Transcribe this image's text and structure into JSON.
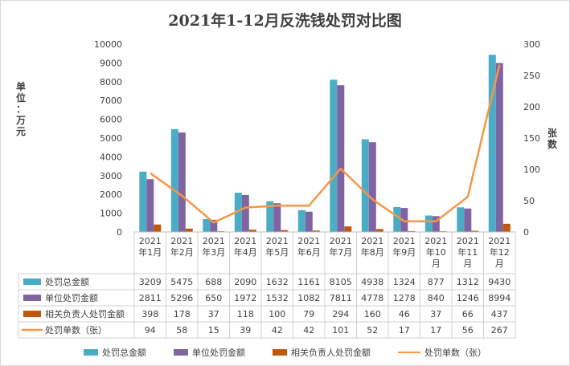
{
  "chart_data": {
    "type": "bar",
    "title": "2021年1-12月反洗钱处罚对比图",
    "ylabel": "单位：万元",
    "y2label": "张数",
    "ylim": [
      0,
      10000
    ],
    "y2lim": [
      0,
      300
    ],
    "yticks": [
      "0",
      "1000",
      "2000",
      "3000",
      "4000",
      "5000",
      "6000",
      "7000",
      "8000",
      "9000",
      "10000"
    ],
    "y2ticks": [
      "0",
      "50",
      "100",
      "150",
      "200",
      "250",
      "300"
    ],
    "categories": [
      "2021年1月",
      "2021年2月",
      "2021年3月",
      "2021年4月",
      "2021年5月",
      "2021年6月",
      "2021年7月",
      "2021年8月",
      "2021年9月",
      "2021年10月",
      "2021年11月",
      "2021年12月"
    ],
    "category_lines": [
      [
        "2021",
        "年1月"
      ],
      [
        "2021",
        "年2月"
      ],
      [
        "2021",
        "年3月"
      ],
      [
        "2021",
        "年4月"
      ],
      [
        "2021",
        "年5月"
      ],
      [
        "2021",
        "年6月"
      ],
      [
        "2021",
        "年7月"
      ],
      [
        "2021",
        "年8月"
      ],
      [
        "2021",
        "年9月"
      ],
      [
        "2021",
        "年10",
        "月"
      ],
      [
        "2021",
        "年11",
        "月"
      ],
      [
        "2021",
        "年12",
        "月"
      ]
    ],
    "series": [
      {
        "name": "处罚总金额",
        "kind": "bar",
        "axis": "left",
        "color": "#4bacc6",
        "values": [
          3209,
          5475,
          688,
          2090,
          1632,
          1161,
          8105,
          4938,
          1324,
          877,
          1312,
          9430
        ]
      },
      {
        "name": "单位处罚金额",
        "kind": "bar",
        "axis": "left",
        "color": "#8064a2",
        "values": [
          2811,
          5296,
          650,
          1972,
          1532,
          1082,
          7811,
          4778,
          1278,
          840,
          1246,
          8994
        ]
      },
      {
        "name": "相关负责人处罚金额",
        "kind": "bar",
        "axis": "left",
        "color": "#c0580c",
        "values": [
          398,
          178,
          37,
          118,
          100,
          79,
          294,
          160,
          46,
          37,
          66,
          437
        ]
      },
      {
        "name": "处罚单数（张）",
        "kind": "line",
        "axis": "right",
        "color": "#f79646",
        "values": [
          94,
          58,
          15,
          39,
          42,
          42,
          101,
          52,
          17,
          17,
          56,
          267
        ]
      }
    ],
    "legend_position": "bottom",
    "grid": false,
    "data_table": true
  }
}
